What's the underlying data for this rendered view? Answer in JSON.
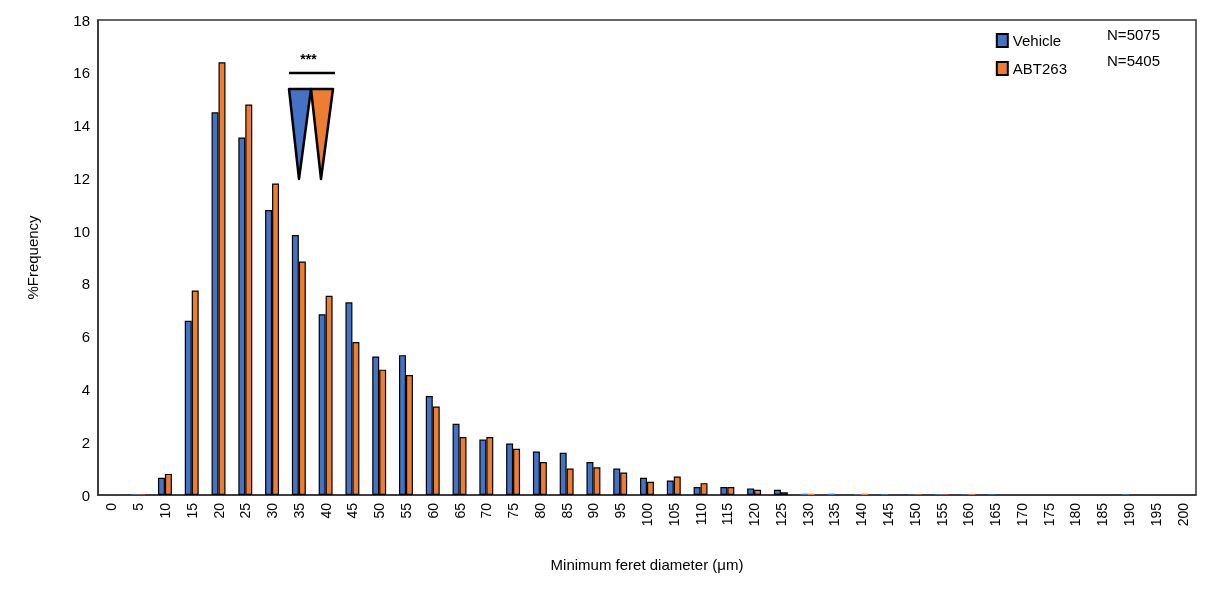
{
  "chart_data": {
    "type": "bar",
    "xlabel": "Minimum feret diameter (μm)",
    "ylabel": "%Frequency",
    "categories": [
      "0",
      "5",
      "10",
      "15",
      "20",
      "25",
      "30",
      "35",
      "40",
      "45",
      "50",
      "55",
      "60",
      "65",
      "70",
      "75",
      "80",
      "85",
      "90",
      "95",
      "100",
      "105",
      "110",
      "115",
      "120",
      "125",
      "130",
      "135",
      "140",
      "145",
      "150",
      "155",
      "160",
      "165",
      "170",
      "175",
      "180",
      "185",
      "190",
      "195",
      "200"
    ],
    "series": [
      {
        "name": "Vehicle",
        "color": "#4472c4",
        "values": [
          0,
          0.03,
          0.65,
          6.6,
          14.5,
          13.55,
          10.8,
          9.85,
          6.85,
          7.3,
          5.25,
          5.3,
          3.75,
          2.7,
          2.1,
          1.95,
          1.65,
          1.6,
          1.25,
          1.0,
          0.65,
          0.55,
          0.3,
          0.3,
          0.25,
          0.2,
          0.05,
          0.05,
          0.03,
          0.03,
          0.02,
          0.03,
          0.02,
          0.02,
          0,
          0,
          0,
          0,
          0.03,
          0,
          0
        ]
      },
      {
        "name": "ABT263",
        "color": "#ed7d31",
        "values": [
          0,
          0.02,
          0.8,
          7.75,
          16.4,
          14.8,
          11.8,
          8.85,
          7.55,
          5.8,
          4.75,
          4.55,
          3.35,
          2.2,
          2.2,
          1.75,
          1.25,
          1.0,
          1.05,
          0.85,
          0.5,
          0.7,
          0.45,
          0.3,
          0.2,
          0.1,
          0.05,
          0,
          0.05,
          0,
          0.02,
          0.02,
          0.03,
          0,
          0,
          0,
          0,
          0,
          0,
          0,
          0
        ]
      }
    ],
    "ylim": [
      0,
      18
    ],
    "yticks": [
      0,
      2,
      4,
      6,
      8,
      10,
      12,
      14,
      16,
      18
    ],
    "grid": false,
    "legend": "top right",
    "annotations": [
      "***",
      "N=5075",
      "N=5405"
    ]
  }
}
